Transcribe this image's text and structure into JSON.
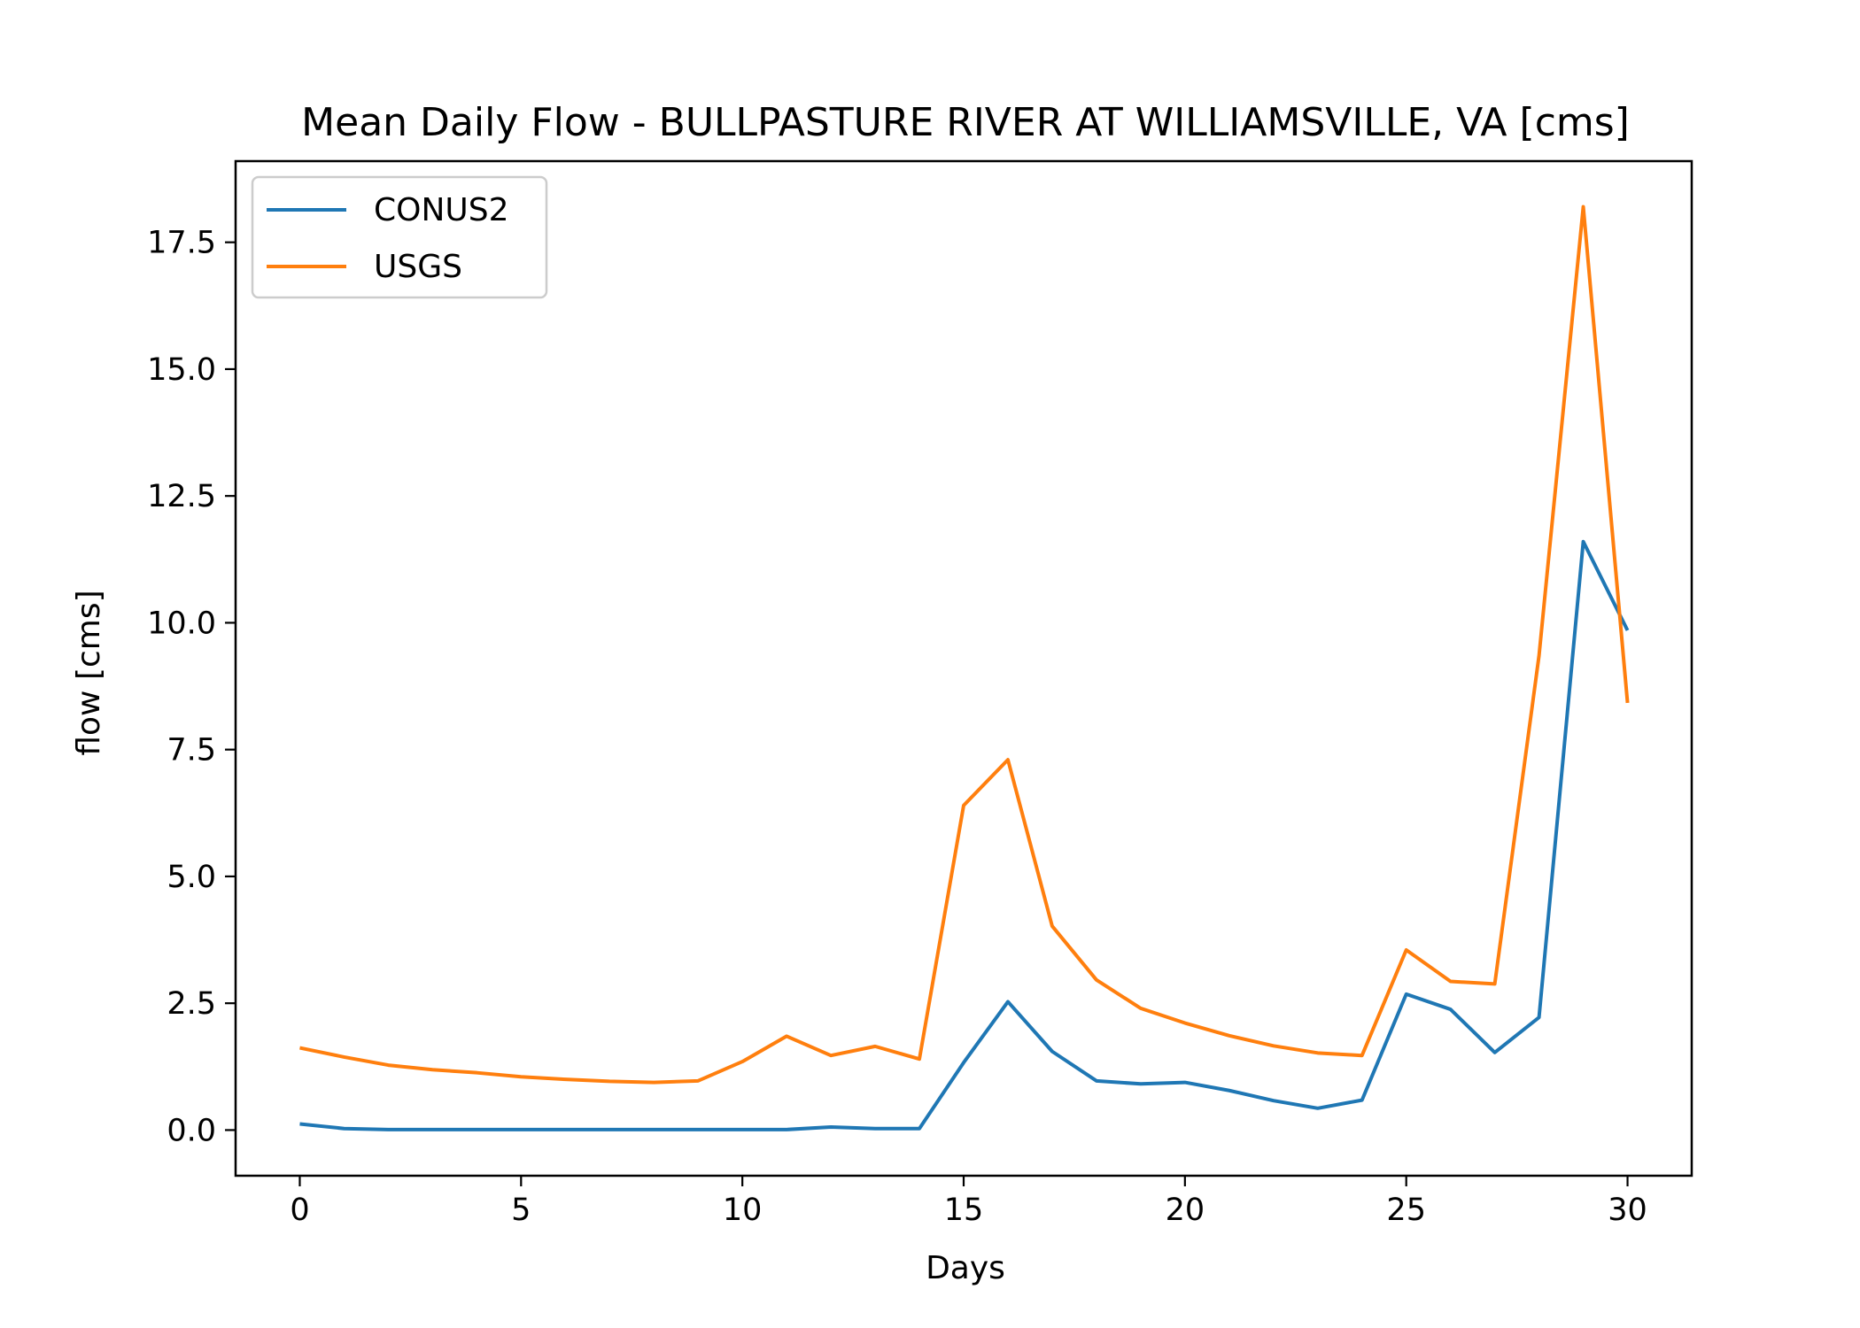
{
  "chart_data": {
    "type": "line",
    "title": "Mean Daily Flow - BULLPASTURE RIVER AT WILLIAMSVILLE, VA [cms]",
    "xlabel": "Days",
    "ylabel": "flow [cms]",
    "xlim": [
      -1.45,
      31.45
    ],
    "ylim": [
      -0.9,
      19.1
    ],
    "xticks": [
      0,
      5,
      10,
      15,
      20,
      25,
      30
    ],
    "xtick_labels": [
      "0",
      "5",
      "10",
      "15",
      "20",
      "25",
      "30"
    ],
    "yticks": [
      0,
      2.5,
      5,
      7.5,
      10,
      12.5,
      15,
      17.5
    ],
    "ytick_labels": [
      "0.0",
      "2.5",
      "5.0",
      "7.5",
      "10.0",
      "12.5",
      "15.0",
      "17.5"
    ],
    "grid": false,
    "legend_position": "top-left",
    "x": [
      0,
      1,
      2,
      3,
      4,
      5,
      6,
      7,
      8,
      9,
      10,
      11,
      12,
      13,
      14,
      15,
      16,
      17,
      18,
      19,
      20,
      21,
      22,
      23,
      24,
      25,
      26,
      27,
      28,
      29,
      30
    ],
    "series": [
      {
        "name": "CONUS2",
        "color": "#1f77b4",
        "values": [
          0.12,
          0.03,
          0.01,
          0.01,
          0.01,
          0.01,
          0.01,
          0.01,
          0.01,
          0.01,
          0.01,
          0.01,
          0.06,
          0.03,
          0.03,
          1.33,
          2.53,
          1.55,
          0.97,
          0.91,
          0.94,
          0.78,
          0.58,
          0.43,
          0.59,
          2.68,
          2.38,
          1.53,
          2.22,
          11.6,
          9.85
        ]
      },
      {
        "name": "USGS",
        "color": "#ff7f0e",
        "values": [
          1.62,
          1.44,
          1.28,
          1.19,
          1.13,
          1.05,
          1.0,
          0.96,
          0.94,
          0.97,
          1.35,
          1.85,
          1.47,
          1.65,
          1.4,
          6.4,
          7.3,
          4.02,
          2.96,
          2.4,
          2.11,
          1.86,
          1.66,
          1.52,
          1.47,
          3.55,
          2.93,
          2.88,
          9.35,
          18.2,
          8.42
        ]
      }
    ]
  }
}
